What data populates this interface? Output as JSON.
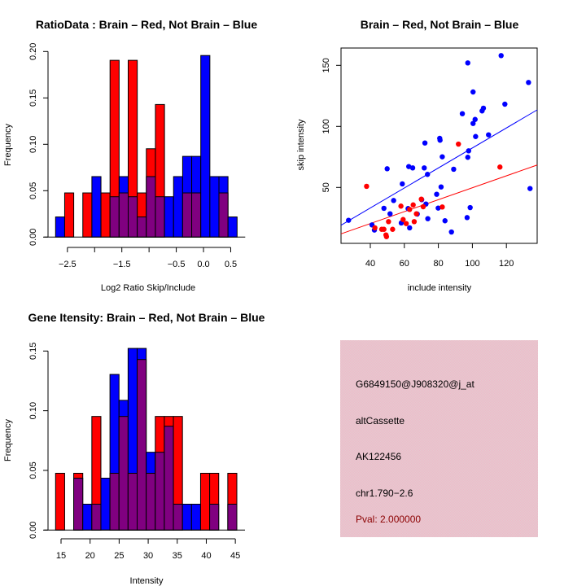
{
  "colors": {
    "brain": "#ff0000",
    "not_brain": "#0000ff",
    "overlap": "#800080",
    "info_panel_bg": "#e9c3cc",
    "pval_text": "#8b0000"
  },
  "chart_data": [
    {
      "id": "ratio-histogram",
      "type": "bar",
      "title": "RatioData : Brain – Red, Not Brain – Blue",
      "xlabel": "Log2 Ratio Skip/Include",
      "ylabel": "Frequency",
      "xlim": [
        -2.8,
        0.75
      ],
      "ylim": [
        0,
        0.2
      ],
      "xticks": [
        -2.5,
        -2.0,
        -1.5,
        -1.0,
        -0.5,
        0.0,
        0.5
      ],
      "xtick_labels": [
        "−2.5",
        "",
        "−1.5",
        "",
        "−0.5",
        "0.0",
        "0.5"
      ],
      "yticks": [
        0,
        0.05,
        0.1,
        0.15,
        0.2
      ],
      "ytick_labels": [
        "0.00",
        "0.05",
        "0.10",
        "0.15",
        "0.20"
      ],
      "bin_start": -2.717,
      "bin_width": 0.1667,
      "series": [
        {
          "name": "Brain",
          "color": "#ff0000",
          "values": [
            0,
            0.0476,
            0,
            0.0476,
            0,
            0.0476,
            0.1905,
            0.0476,
            0.1905,
            0.0476,
            0.0952,
            0.1429,
            0,
            0,
            0.0476,
            0.0476,
            0,
            0,
            0.0476,
            0
          ]
        },
        {
          "name": "Not Brain",
          "color": "#0000ff",
          "values": [
            0.0217,
            0,
            0,
            0,
            0.0652,
            0,
            0.0435,
            0.0652,
            0.0435,
            0.0217,
            0.0652,
            0.0435,
            0.0435,
            0.0652,
            0.087,
            0.087,
            0.1957,
            0.0652,
            0.0652,
            0.0217
          ]
        }
      ],
      "grid": false
    },
    {
      "id": "intensity-scatter",
      "type": "scatter",
      "title": "Brain – Red, Not Brain – Blue",
      "xlabel": "include intensity",
      "ylabel": "skip intensity",
      "xlim": [
        22.8,
        138.1
      ],
      "ylim": [
        3.0,
        163.0
      ],
      "xticks": [
        40,
        60,
        80,
        100,
        120
      ],
      "xtick_labels": [
        "40",
        "60",
        "80",
        "100",
        "120"
      ],
      "yticks": [
        50,
        100,
        150
      ],
      "ytick_labels": [
        "50",
        "100",
        "150"
      ],
      "series": [
        {
          "name": "Not Brain",
          "color": "#0000ff",
          "points": [
            [
              97.3,
              152.0
            ],
            [
              116.9,
              158.0
            ],
            [
              133.0,
              136.0
            ],
            [
              100.4,
              128.2
            ],
            [
              119.1,
              118.2
            ],
            [
              106.5,
              114.9
            ],
            [
              105.7,
              112.7
            ],
            [
              94.1,
              110.4
            ],
            [
              101.6,
              105.7
            ],
            [
              100.4,
              102.4
            ],
            [
              101.9,
              91.7
            ],
            [
              109.5,
              93.1
            ],
            [
              80.8,
              90.2
            ],
            [
              81.0,
              88.7
            ],
            [
              72.1,
              86.4
            ],
            [
              97.8,
              80.0
            ],
            [
              97.3,
              74.7
            ],
            [
              82.3,
              75.1
            ],
            [
              49.9,
              65.3
            ],
            [
              62.6,
              67.1
            ],
            [
              64.9,
              66.0
            ],
            [
              71.7,
              66.0
            ],
            [
              89.0,
              64.9
            ],
            [
              73.6,
              60.7
            ],
            [
              58.8,
              52.9
            ],
            [
              81.6,
              50.4
            ],
            [
              133.9,
              49.1
            ],
            [
              79.0,
              44.4
            ],
            [
              70.2,
              40.0
            ],
            [
              53.7,
              39.3
            ],
            [
              72.7,
              36.4
            ],
            [
              98.7,
              33.5
            ],
            [
              79.9,
              33.1
            ],
            [
              48.0,
              32.9
            ],
            [
              62.2,
              32.7
            ],
            [
              67.6,
              28.2
            ],
            [
              51.6,
              28.4
            ],
            [
              27.2,
              23.1
            ],
            [
              73.8,
              24.4
            ],
            [
              96.9,
              25.3
            ],
            [
              83.9,
              22.7
            ],
            [
              41.0,
              19.3
            ],
            [
              58.2,
              20.9
            ],
            [
              42.4,
              15.1
            ],
            [
              63.1,
              16.9
            ],
            [
              87.7,
              13.5
            ]
          ],
          "fit": {
            "slope": 0.819,
            "intercept": 0.43
          }
        },
        {
          "name": "Brain",
          "color": "#ff0000",
          "points": [
            [
              91.8,
              85.5
            ],
            [
              116.2,
              66.7
            ],
            [
              37.8,
              50.9
            ],
            [
              70.0,
              40.4
            ],
            [
              58.0,
              34.7
            ],
            [
              65.2,
              35.7
            ],
            [
              71.1,
              34.2
            ],
            [
              82.3,
              34.0
            ],
            [
              63.1,
              32.0
            ],
            [
              67.1,
              28.4
            ],
            [
              59.3,
              23.7
            ],
            [
              50.7,
              22.0
            ],
            [
              61.1,
              20.4
            ],
            [
              65.8,
              22.0
            ],
            [
              42.7,
              16.9
            ],
            [
              46.7,
              15.7
            ],
            [
              48.0,
              15.7
            ],
            [
              53.1,
              15.7
            ],
            [
              49.2,
              11.1
            ],
            [
              49.5,
              9.7
            ]
          ],
          "fit": {
            "slope": 0.489,
            "intercept": 0.85
          }
        }
      ],
      "grid": false
    },
    {
      "id": "gene-intensity-histogram",
      "type": "bar",
      "title": "Gene Itensity: Brain – Red, Not Brain – Blue",
      "xlabel": "Intensity",
      "ylabel": "Frequency",
      "xlim": [
        13.2,
        46.2
      ],
      "ylim": [
        0,
        0.15
      ],
      "xticks": [
        15,
        20,
        25,
        30,
        35,
        40,
        45
      ],
      "xtick_labels": [
        "15",
        "20",
        "25",
        "30",
        "35",
        "40",
        "45"
      ],
      "yticks": [
        0,
        0.05,
        0.1,
        0.15
      ],
      "ytick_labels": [
        "0.00",
        "0.05",
        "0.10",
        "0.15"
      ],
      "bin_start": 14.06,
      "bin_width": 1.56,
      "series": [
        {
          "name": "Brain",
          "color": "#ff0000",
          "values": [
            0.0476,
            0,
            0.0476,
            0,
            0.0952,
            0,
            0.0476,
            0.0952,
            0.0476,
            0.1429,
            0.0476,
            0.0952,
            0.0952,
            0.0952,
            0,
            0,
            0.0476,
            0.0476,
            0,
            0.0476
          ]
        },
        {
          "name": "Not Brain",
          "color": "#0000ff",
          "values": [
            0,
            0,
            0.0435,
            0.0217,
            0.0217,
            0.0435,
            0.1304,
            0.1087,
            0.1522,
            0.1522,
            0.0652,
            0.0652,
            0.087,
            0.0217,
            0.0217,
            0.0217,
            0,
            0.0217,
            0,
            0.0217
          ]
        }
      ],
      "grid": false
    }
  ],
  "info_panel": {
    "probe_id": "G6849150@J908320@j_at",
    "event_type": "altCassette",
    "accession": "AK122456",
    "location": "chr1.790−2.6",
    "pval": "Pval: 2.000000"
  }
}
